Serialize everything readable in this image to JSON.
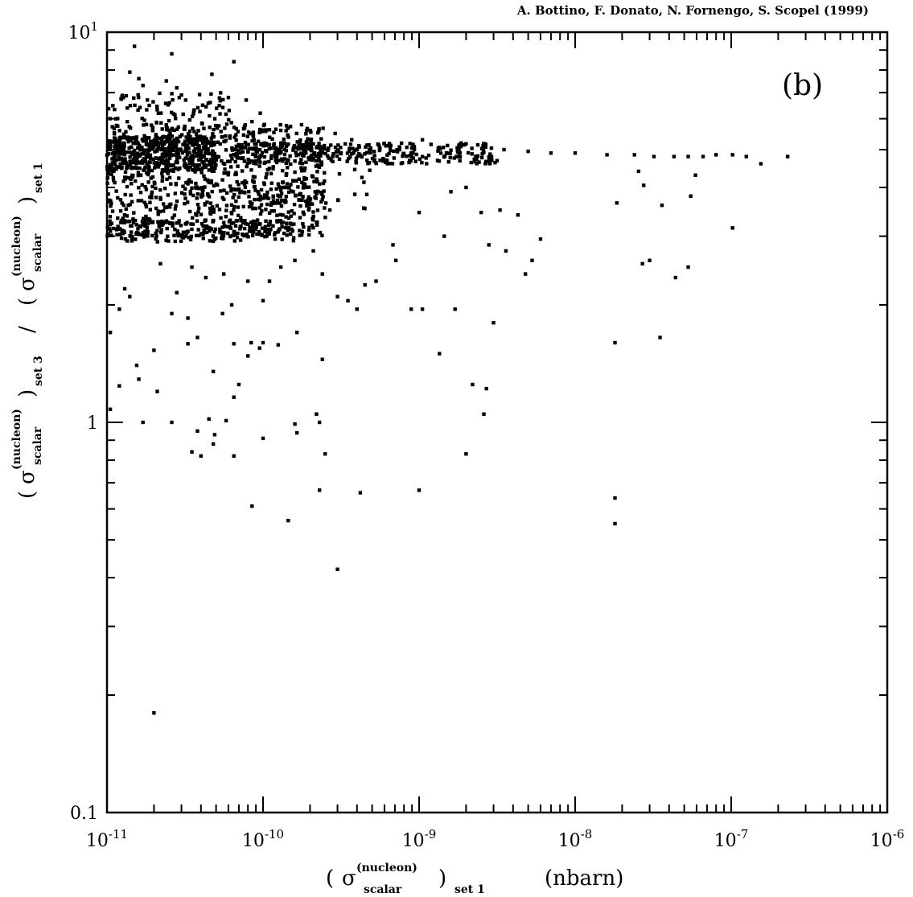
{
  "chart_data": {
    "type": "scatter",
    "credit": "A. Bottino, F. Donato, N. Fornengo, S. Scopel (1999)",
    "panel_label": "(b)",
    "x_scale": "log",
    "y_scale": "log",
    "xlim": [
      1e-11,
      1e-06
    ],
    "ylim": [
      0.1,
      10
    ],
    "x_tick_labels": [
      {
        "value": 1e-11,
        "base": "10",
        "exp": "-11"
      },
      {
        "value": 1e-10,
        "base": "10",
        "exp": "-10"
      },
      {
        "value": 1e-09,
        "base": "10",
        "exp": "-9"
      },
      {
        "value": 1e-08,
        "base": "10",
        "exp": "-8"
      },
      {
        "value": 1e-07,
        "base": "10",
        "exp": "-7"
      },
      {
        "value": 1e-06,
        "base": "10",
        "exp": "-6"
      }
    ],
    "y_tick_labels": [
      {
        "value": 0.1,
        "text": "0.1"
      },
      {
        "value": 1,
        "text": "1"
      },
      {
        "value": 10,
        "base": "10",
        "exp": "1"
      }
    ],
    "xlabel": {
      "sigma": "σ",
      "superscript": "(nucleon)",
      "subscript": "scalar",
      "outer_subscript": "set 1",
      "unit": "(nbarn)"
    },
    "ylabel": {
      "sigma": "σ",
      "superscript": "(nucleon)",
      "subscript": "scalar",
      "numerator_set": "set 3",
      "denominator_set": "set 1",
      "divider": "/"
    },
    "grid": false,
    "legend": "none",
    "marker_color": "#000000",
    "points": [
      [
        1.5e-11,
        9.2
      ],
      [
        1.4e-11,
        7.9
      ],
      [
        1.6e-11,
        7.6
      ],
      [
        1.7e-11,
        7.3
      ],
      [
        2.6e-11,
        8.8
      ],
      [
        2.4e-11,
        7.5
      ],
      [
        2.8e-11,
        7.2
      ],
      [
        4.7e-11,
        7.8
      ],
      [
        6.5e-11,
        8.4
      ],
      [
        4.1e-11,
        6.5
      ],
      [
        3e-11,
        6.9
      ],
      [
        6e-11,
        6.8
      ],
      [
        7.8e-11,
        6.7
      ],
      [
        9.6e-11,
        6.2
      ],
      [
        8.5e-11,
        5.9
      ],
      [
        1.02e-10,
        5.8
      ],
      [
        1.3e-10,
        5.6
      ],
      [
        1.9e-10,
        5.6
      ],
      [
        2.9e-10,
        5.5
      ],
      [
        3.7e-10,
        5.3
      ],
      [
        1.05e-09,
        5.3
      ],
      [
        1.8e-09,
        5.0
      ],
      [
        3.5e-09,
        5.0
      ],
      [
        5e-09,
        4.95
      ],
      [
        7e-09,
        4.9
      ],
      [
        1e-08,
        4.9
      ],
      [
        1.6e-08,
        4.85
      ],
      [
        2.4e-08,
        4.85
      ],
      [
        3.2e-08,
        4.8
      ],
      [
        4.3e-08,
        4.8
      ],
      [
        5.3e-08,
        4.8
      ],
      [
        6.6e-08,
        4.8
      ],
      [
        8e-08,
        4.85
      ],
      [
        1.02e-07,
        4.85
      ],
      [
        1.25e-07,
        4.8
      ],
      [
        1.55e-07,
        4.6
      ],
      [
        2.3e-07,
        4.8
      ],
      [
        1.02e-07,
        3.15
      ],
      [
        5.9e-08,
        4.3
      ],
      [
        5.5e-08,
        3.8
      ],
      [
        3.6e-08,
        3.6
      ],
      [
        2.75e-08,
        4.05
      ],
      [
        2.55e-08,
        4.4
      ],
      [
        1.85e-08,
        3.65
      ],
      [
        3e-08,
        2.6
      ],
      [
        2.7e-08,
        2.55
      ],
      [
        4.4e-08,
        2.35
      ],
      [
        5.3e-08,
        2.5
      ],
      [
        2e-09,
        4.0
      ],
      [
        1.6e-09,
        3.9
      ],
      [
        3.3e-09,
        3.5
      ],
      [
        4.3e-09,
        3.4
      ],
      [
        2.8e-09,
        2.85
      ],
      [
        6e-09,
        2.95
      ],
      [
        3.6e-09,
        2.75
      ],
      [
        5.3e-09,
        2.6
      ],
      [
        4.8e-09,
        2.4
      ],
      [
        1.45e-09,
        3.0
      ],
      [
        1e-09,
        3.45
      ],
      [
        2.5e-09,
        3.45
      ],
      [
        6.8e-10,
        2.85
      ],
      [
        7.1e-10,
        2.6
      ],
      [
        5.3e-10,
        2.3
      ],
      [
        4.5e-10,
        2.25
      ],
      [
        3.5e-10,
        2.05
      ],
      [
        4e-10,
        1.95
      ],
      [
        3e-10,
        2.1
      ],
      [
        2.4e-10,
        2.4
      ],
      [
        2.1e-10,
        2.75
      ],
      [
        1.6e-10,
        2.6
      ],
      [
        1.3e-10,
        2.5
      ],
      [
        1.1e-10,
        2.3
      ],
      [
        1e-10,
        2.05
      ],
      [
        8.9e-10,
        1.95
      ],
      [
        1.05e-09,
        1.95
      ],
      [
        1.7e-09,
        1.95
      ],
      [
        3e-09,
        1.8
      ],
      [
        1.8e-08,
        1.6
      ],
      [
        3.5e-08,
        1.65
      ],
      [
        1.35e-09,
        1.5
      ],
      [
        2.2e-09,
        1.25
      ],
      [
        2.7e-09,
        1.22
      ],
      [
        2.6e-09,
        1.05
      ],
      [
        2e-09,
        0.83
      ],
      [
        1e-09,
        0.67
      ],
      [
        1.8e-08,
        0.64
      ],
      [
        1.8e-08,
        0.55
      ],
      [
        4.2e-10,
        0.66
      ],
      [
        2.3e-10,
        0.67
      ],
      [
        1.45e-10,
        0.56
      ],
      [
        8.5e-11,
        0.61
      ],
      [
        3e-10,
        0.42
      ],
      [
        2.4e-10,
        1.45
      ],
      [
        2.2e-10,
        1.05
      ],
      [
        2.3e-10,
        1.0
      ],
      [
        2.5e-10,
        0.83
      ],
      [
        1.65e-10,
        0.94
      ],
      [
        1.6e-10,
        0.99
      ],
      [
        1e-10,
        0.91
      ],
      [
        6.5e-11,
        0.82
      ],
      [
        4e-11,
        0.82
      ],
      [
        3.5e-11,
        0.84
      ],
      [
        4.8e-11,
        0.88
      ],
      [
        4.9e-11,
        0.93
      ],
      [
        3.8e-11,
        0.95
      ],
      [
        4.5e-11,
        1.02
      ],
      [
        5.8e-11,
        1.01
      ],
      [
        4.8e-11,
        1.35
      ],
      [
        6.5e-11,
        1.16
      ],
      [
        7e-11,
        1.25
      ],
      [
        8e-11,
        1.48
      ],
      [
        9.5e-11,
        1.55
      ],
      [
        8.4e-11,
        1.6
      ],
      [
        1e-10,
        1.6
      ],
      [
        1.25e-10,
        1.58
      ],
      [
        1.65e-10,
        1.7
      ],
      [
        6.5e-11,
        1.59
      ],
      [
        3.3e-11,
        1.59
      ],
      [
        2e-11,
        1.53
      ],
      [
        2.1e-11,
        1.2
      ],
      [
        2.6e-11,
        1.0
      ],
      [
        1.7e-11,
        1.0
      ],
      [
        1.2e-11,
        1.24
      ],
      [
        1.6e-11,
        1.29
      ],
      [
        1.55e-11,
        1.4
      ],
      [
        1.05e-11,
        1.08
      ],
      [
        1.05e-11,
        1.7
      ],
      [
        1.2e-11,
        1.95
      ],
      [
        1.4e-11,
        2.1
      ],
      [
        1.3e-11,
        2.2
      ],
      [
        2.6e-11,
        1.9
      ],
      [
        2.8e-11,
        2.15
      ],
      [
        3.3e-11,
        1.85
      ],
      [
        3.8e-11,
        1.65
      ],
      [
        5.5e-11,
        1.9
      ],
      [
        6.3e-11,
        2.0
      ],
      [
        2.2e-11,
        2.55
      ],
      [
        3.5e-11,
        2.5
      ],
      [
        4.3e-11,
        2.35
      ],
      [
        5.6e-11,
        2.4
      ],
      [
        8e-11,
        2.3
      ],
      [
        2e-11,
        0.18
      ]
    ]
  }
}
